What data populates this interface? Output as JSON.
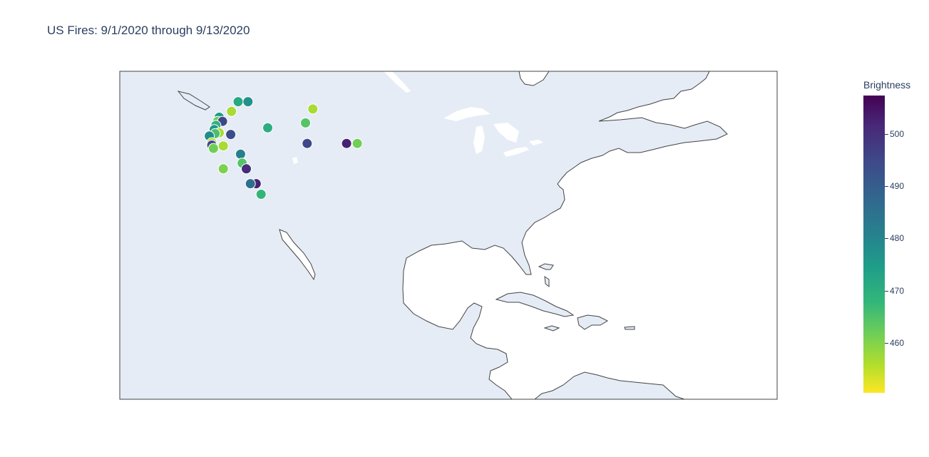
{
  "title": "US Fires: 9/1/2020 through 9/13/2020",
  "colorbar": {
    "title": "Brightness",
    "min": 450.5,
    "max": 507.3,
    "ticks": [
      "500",
      "490",
      "480",
      "470",
      "460"
    ],
    "tick_values": [
      500,
      490,
      480,
      470,
      460
    ]
  },
  "map": {
    "projection": "equirectangular",
    "land_color": "#e5ecf6",
    "ocean_color": "#ffffff",
    "coastline_color": "#444444",
    "lon_range": [
      -137.5,
      -57.5
    ],
    "lat_range": [
      8.5,
      48.5
    ]
  },
  "fires": [
    {
      "lon": -123.1,
      "lat": 44.8,
      "b": 473
    },
    {
      "lon": -121.9,
      "lat": 44.8,
      "b": 479
    },
    {
      "lon": -123.9,
      "lat": 43.6,
      "b": 458
    },
    {
      "lon": -114.0,
      "lat": 43.9,
      "b": 458
    },
    {
      "lon": -125.4,
      "lat": 42.9,
      "b": 476
    },
    {
      "lon": -125.6,
      "lat": 42.4,
      "b": 463
    },
    {
      "lon": -125.0,
      "lat": 42.4,
      "b": 495
    },
    {
      "lon": -125.8,
      "lat": 41.9,
      "b": 471
    },
    {
      "lon": -114.9,
      "lat": 42.2,
      "b": 466
    },
    {
      "lon": -119.5,
      "lat": 41.6,
      "b": 472
    },
    {
      "lon": -126.0,
      "lat": 41.4,
      "b": 478
    },
    {
      "lon": -125.4,
      "lat": 41.0,
      "b": 458
    },
    {
      "lon": -125.9,
      "lat": 40.9,
      "b": 467
    },
    {
      "lon": -124.0,
      "lat": 40.8,
      "b": 494
    },
    {
      "lon": -126.6,
      "lat": 40.6,
      "b": 480
    },
    {
      "lon": -126.3,
      "lat": 39.8,
      "b": 458
    },
    {
      "lon": -126.3,
      "lat": 39.5,
      "b": 495
    },
    {
      "lon": -126.1,
      "lat": 39.1,
      "b": 463
    },
    {
      "lon": -124.9,
      "lat": 39.4,
      "b": 458
    },
    {
      "lon": -114.7,
      "lat": 39.7,
      "b": 495
    },
    {
      "lon": -109.9,
      "lat": 39.7,
      "b": 502
    },
    {
      "lon": -108.6,
      "lat": 39.7,
      "b": 463
    },
    {
      "lon": -122.8,
      "lat": 38.4,
      "b": 483
    },
    {
      "lon": -122.6,
      "lat": 37.3,
      "b": 466
    },
    {
      "lon": -122.1,
      "lat": 36.6,
      "b": 500
    },
    {
      "lon": -124.9,
      "lat": 36.6,
      "b": 462
    },
    {
      "lon": -120.9,
      "lat": 34.8,
      "b": 502
    },
    {
      "lon": -121.6,
      "lat": 34.8,
      "b": 487
    },
    {
      "lon": -120.3,
      "lat": 33.5,
      "b": 470
    }
  ]
}
